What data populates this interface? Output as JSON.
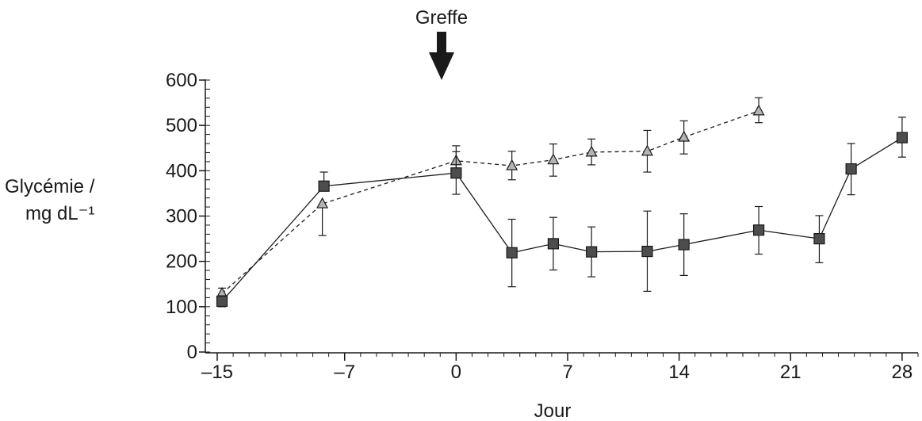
{
  "chart_data": {
    "type": "line",
    "annotation": {
      "label": "Greffe",
      "x": 0
    },
    "xlabel": "Jour",
    "ylabel_line1": "Glycémie /",
    "ylabel_line2": "mg dL⁻¹",
    "xlim": [
      -15,
      29
    ],
    "ylim": [
      0,
      600
    ],
    "xticks": [
      -15,
      -7,
      0,
      7,
      14,
      21,
      28
    ],
    "xtick_labels": [
      "–15",
      "–7",
      "0",
      "7",
      "14",
      "21",
      "28"
    ],
    "yticks": [
      0,
      100,
      200,
      300,
      400,
      500,
      600
    ],
    "ytick_labels": [
      "0",
      "100",
      "200",
      "300",
      "400",
      "500",
      "600"
    ],
    "series": [
      {
        "marker": "square",
        "line_style": "solid",
        "color": "#4d4d4d",
        "points": [
          {
            "x": -14.7,
            "y": 112,
            "err_low": 12,
            "err_high": 12
          },
          {
            "x": -8.3,
            "y": 366,
            "err_low": 0,
            "err_high": 31
          },
          {
            "x": 0,
            "y": 395,
            "err_low": 47,
            "err_high": 47
          },
          {
            "x": 3.5,
            "y": 219,
            "err_low": 75,
            "err_high": 74
          },
          {
            "x": 6.1,
            "y": 239,
            "err_low": 58,
            "err_high": 58
          },
          {
            "x": 8.5,
            "y": 221,
            "err_low": 55,
            "err_high": 55
          },
          {
            "x": 12,
            "y": 222,
            "err_low": 88,
            "err_high": 89
          },
          {
            "x": 14.3,
            "y": 237,
            "err_low": 68,
            "err_high": 68
          },
          {
            "x": 19,
            "y": 269,
            "err_low": 53,
            "err_high": 52
          },
          {
            "x": 22.8,
            "y": 250,
            "err_low": 53,
            "err_high": 51
          },
          {
            "x": 24.8,
            "y": 404,
            "err_low": 57,
            "err_high": 56
          },
          {
            "x": 28,
            "y": 473,
            "err_low": 43,
            "err_high": 45
          }
        ]
      },
      {
        "marker": "triangle",
        "line_style": "dashed",
        "color": "#b3b3b3",
        "points": [
          {
            "x": -14.7,
            "y": 129,
            "err_low": 20,
            "err_high": 12
          },
          {
            "x": -8.4,
            "y": 327,
            "err_low": 70,
            "err_high": 0
          },
          {
            "x": 0,
            "y": 422,
            "err_low": 18,
            "err_high": 33
          },
          {
            "x": 3.5,
            "y": 411,
            "err_low": 31,
            "err_high": 32
          },
          {
            "x": 6.1,
            "y": 424,
            "err_low": 36,
            "err_high": 35
          },
          {
            "x": 8.5,
            "y": 441,
            "err_low": 28,
            "err_high": 29
          },
          {
            "x": 12,
            "y": 443,
            "err_low": 46,
            "err_high": 46
          },
          {
            "x": 14.3,
            "y": 474,
            "err_low": 37,
            "err_high": 36
          },
          {
            "x": 19,
            "y": 532,
            "err_low": 26,
            "err_high": 29
          }
        ]
      }
    ]
  }
}
